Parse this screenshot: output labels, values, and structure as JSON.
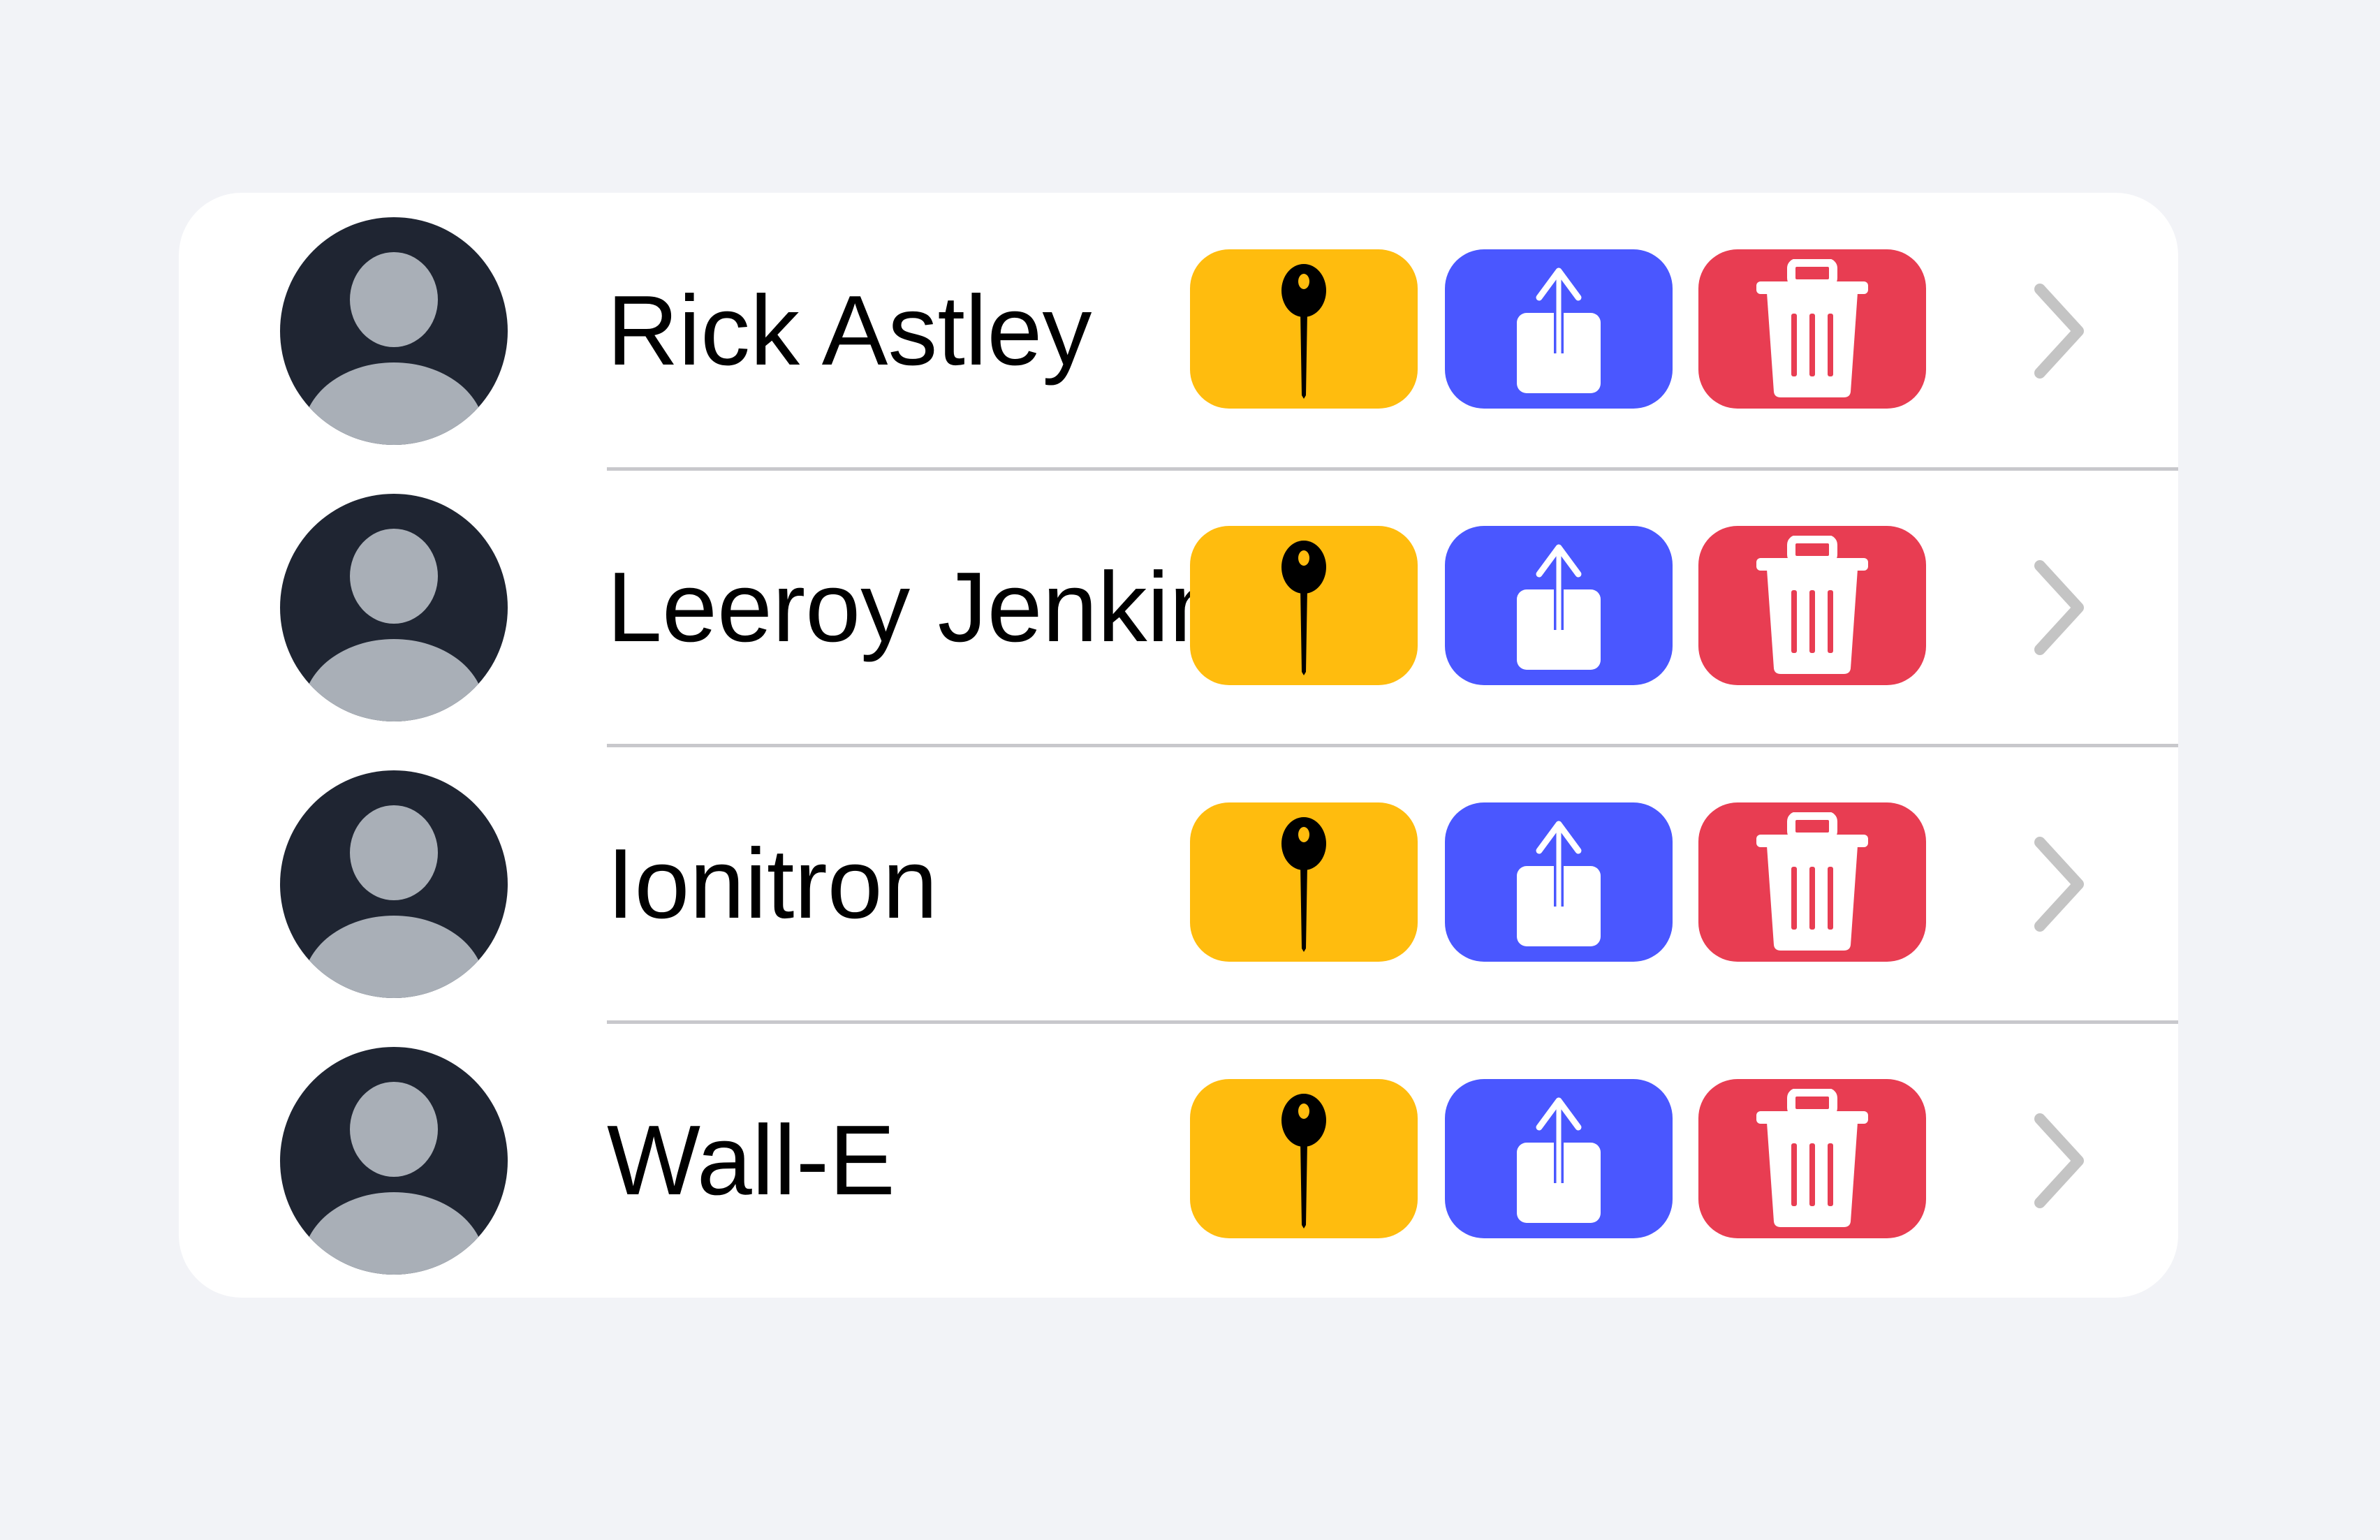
{
  "colors": {
    "background": "#f2f3f7",
    "pin": "#ffbc0e",
    "share": "#4a57ff",
    "delete": "#e83d52",
    "chevron": "#c4c4c4",
    "avatar_dark": "#1f2532",
    "avatar_light": "#a9afb7"
  },
  "contacts": [
    {
      "name": "Rick Astley"
    },
    {
      "name": "Leeroy Jenkins"
    },
    {
      "name": "Ionitron"
    },
    {
      "name": "Wall-E"
    }
  ],
  "icons": {
    "avatar": "person-circle",
    "pin": "pin-icon",
    "share": "share-icon",
    "delete": "trash-icon",
    "chevron": "chevron-right-icon"
  }
}
